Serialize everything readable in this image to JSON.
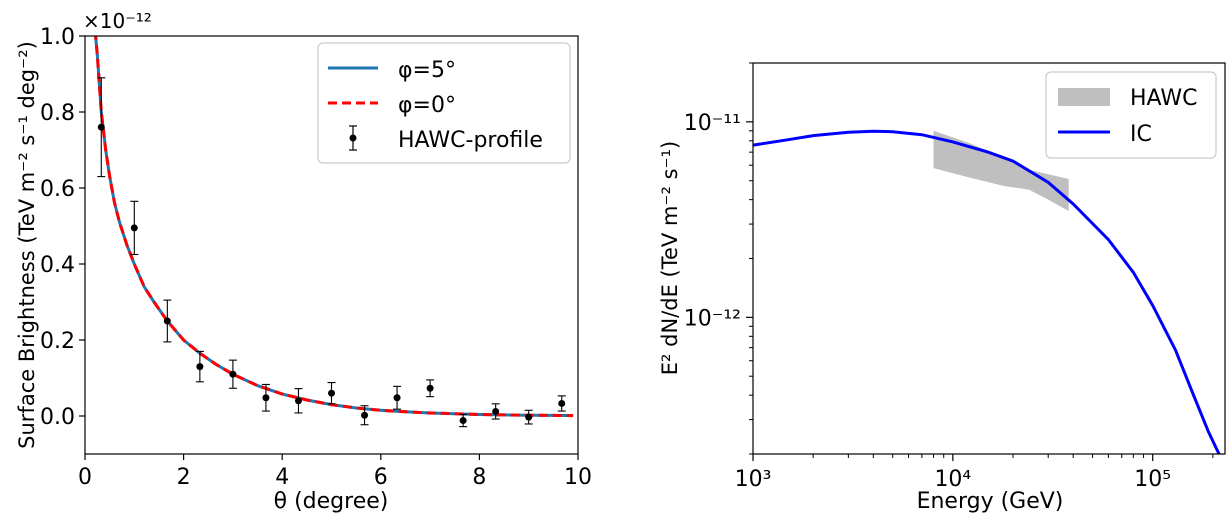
{
  "chart_data": [
    {
      "type": "line",
      "title": "",
      "xlabel": "θ (degree)",
      "ylabel": "Surface Brightness (TeV m⁻² s⁻¹ deg⁻²)",
      "y_multiplier": "×10⁻¹²",
      "xlim": [
        0,
        10
      ],
      "ylim": [
        -0.1,
        1.0
      ],
      "xticks": [
        0,
        2,
        4,
        6,
        8,
        10
      ],
      "yticks": [
        0.0,
        0.2,
        0.4,
        0.6,
        0.8,
        1.0
      ],
      "xtick_labels": [
        "0",
        "2",
        "4",
        "6",
        "8",
        "10"
      ],
      "ytick_labels": [
        "0.0",
        "0.2",
        "0.4",
        "0.6",
        "0.8",
        "1.0"
      ],
      "grid": false,
      "legend_position": "top-right",
      "legend": [
        {
          "label": "φ=5°",
          "style": "solid",
          "color": "#1f77b4"
        },
        {
          "label": "φ=0°",
          "style": "dashed",
          "color": "#ff0000"
        },
        {
          "label": "HAWC-profile",
          "style": "errorbar",
          "color": "#000000"
        }
      ],
      "series": [
        {
          "name": "φ=5°",
          "style": "solid",
          "color": "#1f77b4",
          "x": [
            0.18,
            0.25,
            0.33,
            0.42,
            0.5,
            0.6,
            0.7,
            0.85,
            1.0,
            1.2,
            1.4,
            1.67,
            2.0,
            2.33,
            2.67,
            3.0,
            3.5,
            4.0,
            4.5,
            5.0,
            5.5,
            6.0,
            6.5,
            7.0,
            7.5,
            8.0,
            8.5,
            9.0,
            9.5,
            9.9
          ],
          "y": [
            1.05,
            0.95,
            0.8,
            0.7,
            0.63,
            0.56,
            0.51,
            0.45,
            0.4,
            0.34,
            0.3,
            0.25,
            0.2,
            0.165,
            0.135,
            0.11,
            0.08,
            0.058,
            0.042,
            0.03,
            0.021,
            0.015,
            0.011,
            0.008,
            0.006,
            0.004,
            0.003,
            0.002,
            0.0015,
            0.001
          ]
        },
        {
          "name": "φ=0°",
          "style": "dashed",
          "color": "#ff0000",
          "x": [
            0.18,
            0.25,
            0.33,
            0.42,
            0.5,
            0.6,
            0.7,
            0.85,
            1.0,
            1.2,
            1.4,
            1.67,
            2.0,
            2.33,
            2.67,
            3.0,
            3.5,
            4.0,
            4.5,
            5.0,
            5.5,
            6.0,
            6.5,
            7.0,
            7.5,
            8.0,
            8.5,
            9.0,
            9.5,
            9.9
          ],
          "y": [
            1.05,
            0.95,
            0.8,
            0.7,
            0.63,
            0.56,
            0.51,
            0.45,
            0.4,
            0.34,
            0.3,
            0.25,
            0.2,
            0.165,
            0.135,
            0.11,
            0.08,
            0.058,
            0.042,
            0.03,
            0.021,
            0.015,
            0.011,
            0.008,
            0.006,
            0.004,
            0.003,
            0.002,
            0.0015,
            0.001
          ]
        },
        {
          "name": "HAWC-profile",
          "style": "errorbar",
          "color": "#000000",
          "x": [
            0.33,
            1.0,
            1.67,
            2.33,
            3.0,
            3.67,
            4.33,
            5.0,
            5.67,
            6.33,
            7.0,
            7.67,
            8.33,
            9.0,
            9.67
          ],
          "y": [
            0.76,
            0.495,
            0.25,
            0.13,
            0.11,
            0.048,
            0.04,
            0.06,
            0.002,
            0.048,
            0.073,
            -0.012,
            0.012,
            -0.003,
            0.033
          ],
          "err": [
            0.13,
            0.07,
            0.055,
            0.04,
            0.037,
            0.035,
            0.032,
            0.028,
            0.025,
            0.03,
            0.022,
            0.016,
            0.02,
            0.018,
            0.02
          ]
        }
      ]
    },
    {
      "type": "line",
      "title": "",
      "xlabel": "Energy (GeV)",
      "ylabel": "E² dN/dE (TeV m⁻² s⁻¹)",
      "x_scale": "log",
      "y_scale": "log",
      "xlim": [
        1000,
        230000
      ],
      "ylim": [
        2e-13,
        2e-11
      ],
      "xtick_labels": [
        "10³",
        "10⁴",
        "10⁵"
      ],
      "ytick_labels": [
        "10⁻¹²",
        "10⁻¹¹"
      ],
      "grid": false,
      "legend_position": "top-right",
      "legend": [
        {
          "label": "HAWC",
          "style": "band",
          "color": "#bfbfbf"
        },
        {
          "label": "IC",
          "style": "solid",
          "color": "#0000ff"
        }
      ],
      "series": [
        {
          "name": "HAWC",
          "type": "area",
          "color": "#bfbfbf",
          "x": [
            8000,
            12000,
            18000,
            24000,
            30000,
            38000
          ],
          "y_upper": [
            9e-12,
            7.8e-12,
            6.6e-12,
            5.7e-12,
            5.4e-12,
            5.1e-12
          ],
          "y_lower": [
            5.8e-12,
            5.2e-12,
            4.7e-12,
            4.5e-12,
            4e-12,
            3.5e-12
          ]
        },
        {
          "name": "IC",
          "color": "#0000ff",
          "x": [
            1000,
            1500,
            2000,
            3000,
            4000,
            5000,
            7000,
            10000,
            15000,
            20000,
            30000,
            40000,
            60000,
            80000,
            100000,
            130000,
            160000,
            190000,
            220000
          ],
          "y": [
            7.6e-12,
            8.1e-12,
            8.5e-12,
            8.85e-12,
            8.95e-12,
            8.9e-12,
            8.6e-12,
            7.9e-12,
            7e-12,
            6.3e-12,
            4.9e-12,
            3.8e-12,
            2.5e-12,
            1.7e-12,
            1.15e-12,
            6.8e-13,
            4e-13,
            2.6e-13,
            1.9e-13
          ]
        }
      ]
    }
  ]
}
